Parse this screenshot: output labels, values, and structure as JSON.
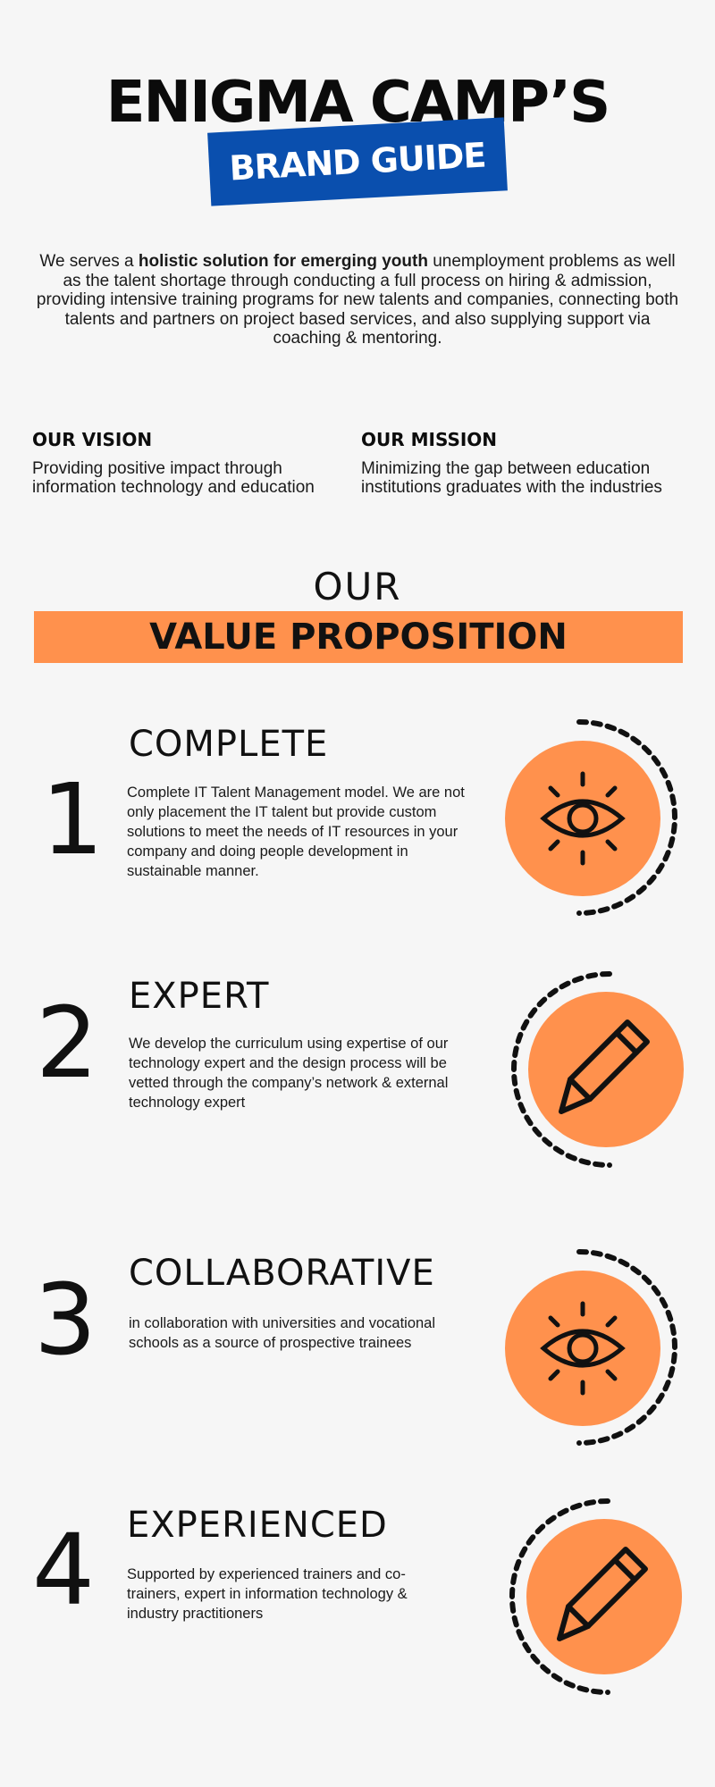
{
  "header": {
    "title": "ENIGMA CAMP’S",
    "badge": "BRAND GUIDE"
  },
  "intro": {
    "prefix": "We serves a ",
    "bold": "holistic solution for emerging youth",
    "suffix": " unemployment problems as well as the talent shortage through conducting a full process on hiring & admission, providing intensive training programs for new talents and companies, connecting both talents and partners on project based services, and also supplying support via coaching & mentoring."
  },
  "vision": {
    "heading": "OUR VISION",
    "text": "Providing positive impact through information technology and education"
  },
  "mission": {
    "heading": "OUR MISSION",
    "text": "Minimizing the gap between education institutions graduates with the industries"
  },
  "value_proposition": {
    "our": "OUR",
    "title": "VALUE PROPOSITION",
    "items": [
      {
        "number": "1",
        "title": "COMPLETE",
        "text": "Complete IT Talent Management model. We are not only placement the IT talent but provide custom solutions to meet the needs of IT resources in your company and doing people development in sustainable manner.",
        "icon": "eye-icon"
      },
      {
        "number": "2",
        "title": "EXPERT",
        "text": "We develop the curriculum using expertise of our technology expert and the design process will be vetted through the company’s network & external technology expert",
        "icon": "pencil-icon"
      },
      {
        "number": "3",
        "title": "COLLABORATIVE",
        "text": "in collaboration with universities and vocational schools as a source of prospective trainees",
        "icon": "eye-icon"
      },
      {
        "number": "4",
        "title": "EXPERIENCED",
        "text": "Supported by experienced trainers and co-trainers, expert in information technology & industry practitioners",
        "icon": "pencil-icon"
      }
    ]
  },
  "colors": {
    "accent_orange": "#ff914d",
    "brand_blue": "#0a4fae",
    "background": "#f6f6f6"
  }
}
